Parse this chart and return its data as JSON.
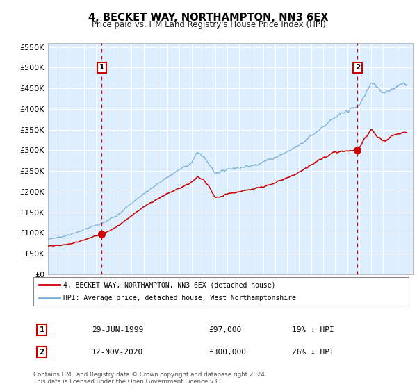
{
  "title": "4, BECKET WAY, NORTHAMPTON, NN3 6EX",
  "subtitle": "Price paid vs. HM Land Registry's House Price Index (HPI)",
  "ytick_values": [
    0,
    50000,
    100000,
    150000,
    200000,
    250000,
    300000,
    350000,
    400000,
    450000,
    500000,
    550000
  ],
  "ylim": [
    0,
    560000
  ],
  "legend_line1": "4, BECKET WAY, NORTHAMPTON, NN3 6EX (detached house)",
  "legend_line2": "HPI: Average price, detached house, West Northamptonshire",
  "sale1_date": "29-JUN-1999",
  "sale1_price": "£97,000",
  "sale1_hpi": "19% ↓ HPI",
  "sale2_date": "12-NOV-2020",
  "sale2_price": "£300,000",
  "sale2_hpi": "26% ↓ HPI",
  "footnote": "Contains HM Land Registry data © Crown copyright and database right 2024.\nThis data is licensed under the Open Government Licence v3.0.",
  "red_line_color": "#cc0000",
  "blue_line_color": "#7ab0d4",
  "plot_bg": "#ddeeff",
  "grid_color": "#ffffff",
  "vline_color": "#cc0000",
  "marker_color": "#cc0000",
  "fig_bg": "#ffffff",
  "sale1_x": 1999.5,
  "sale1_y": 97000,
  "sale2_x": 2020.88,
  "sale2_y": 300000,
  "xlim_left": 1995.0,
  "xlim_right": 2025.5
}
